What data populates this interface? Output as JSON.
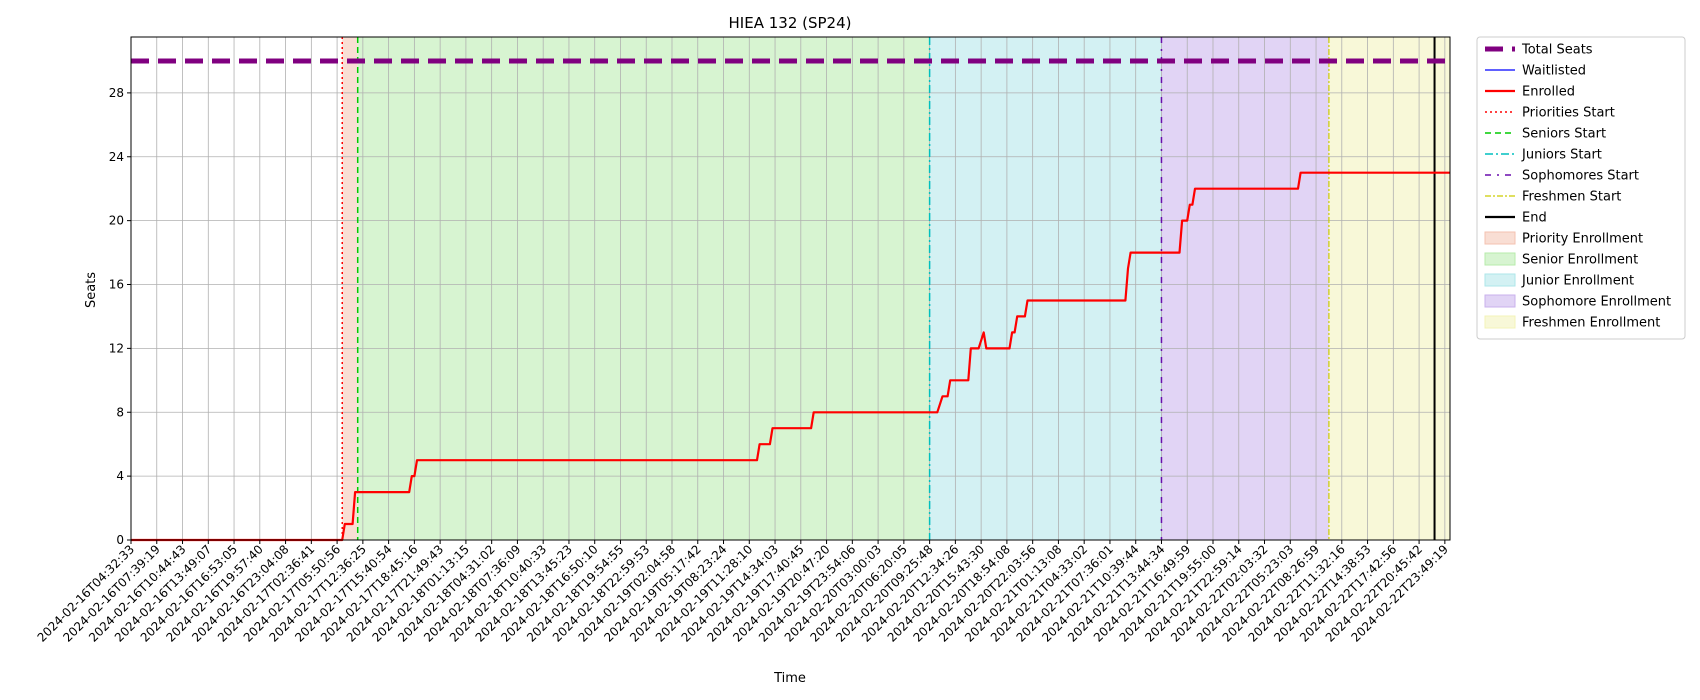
{
  "chart_data": {
    "type": "line",
    "title": "HIEA 132 (SP24)",
    "xlabel": "Time",
    "ylabel": "Seats",
    "ylim": [
      0,
      31.5
    ],
    "yticks": [
      0,
      4,
      8,
      12,
      16,
      20,
      24,
      28
    ],
    "grid": true,
    "legend_position": "outside-right",
    "x_tick_labels": [
      "2024-02-16T04:32:33",
      "2024-02-16T07:39:19",
      "2024-02-16T10:44:43",
      "2024-02-16T13:49:07",
      "2024-02-16T16:53:05",
      "2024-02-16T19:57:40",
      "2024-02-16T23:04:08",
      "2024-02-17T02:36:41",
      "2024-02-17T05:50:56",
      "2024-02-17T12:36:25",
      "2024-02-17T15:40:54",
      "2024-02-17T18:45:16",
      "2024-02-17T21:49:43",
      "2024-02-18T01:13:15",
      "2024-02-18T04:31:02",
      "2024-02-18T07:36:09",
      "2024-02-18T10:40:33",
      "2024-02-18T13:45:23",
      "2024-02-18T16:50:10",
      "2024-02-18T19:54:55",
      "2024-02-18T22:59:53",
      "2024-02-19T02:04:58",
      "2024-02-19T05:17:42",
      "2024-02-19T08:23:24",
      "2024-02-19T11:28:10",
      "2024-02-19T14:34:03",
      "2024-02-19T17:40:45",
      "2024-02-19T20:47:20",
      "2024-02-19T23:54:06",
      "2024-02-20T03:00:03",
      "2024-02-20T06:20:05",
      "2024-02-20T09:25:48",
      "2024-02-20T12:34:26",
      "2024-02-20T15:43:30",
      "2024-02-20T18:54:08",
      "2024-02-20T22:03:56",
      "2024-02-21T01:13:08",
      "2024-02-21T04:33:02",
      "2024-02-21T07:36:01",
      "2024-02-21T10:39:44",
      "2024-02-21T13:44:34",
      "2024-02-21T16:49:59",
      "2024-02-21T19:55:00",
      "2024-02-21T22:59:14",
      "2024-02-22T02:03:32",
      "2024-02-22T05:23:03",
      "2024-02-22T08:26:59",
      "2024-02-22T11:32:16",
      "2024-02-22T14:38:53",
      "2024-02-22T17:42:56",
      "2024-02-22T20:45:42",
      "2024-02-22T23:49:19"
    ],
    "index_range": [
      0,
      51.2
    ],
    "series": [
      {
        "name": "Total Seats",
        "color": "#800080",
        "style": "dashed-thick",
        "points": [
          [
            0,
            30
          ],
          [
            51.2,
            30
          ]
        ]
      },
      {
        "name": "Waitlisted",
        "color": "#0000ff",
        "style": "solid-thin",
        "points": []
      },
      {
        "name": "Enrolled",
        "color": "#ff0000",
        "style": "solid",
        "points": [
          [
            0,
            0
          ],
          [
            8.2,
            0
          ],
          [
            8.3,
            1
          ],
          [
            8.6,
            1
          ],
          [
            8.7,
            3
          ],
          [
            10.8,
            3
          ],
          [
            10.9,
            4
          ],
          [
            11.0,
            4
          ],
          [
            11.1,
            5
          ],
          [
            24.3,
            5
          ],
          [
            24.4,
            6
          ],
          [
            24.8,
            6
          ],
          [
            24.9,
            7
          ],
          [
            26.4,
            7
          ],
          [
            26.5,
            8
          ],
          [
            31.3,
            8
          ],
          [
            31.5,
            9
          ],
          [
            31.7,
            9
          ],
          [
            31.8,
            10
          ],
          [
            32.5,
            10
          ],
          [
            32.6,
            12
          ],
          [
            32.9,
            12
          ],
          [
            33.1,
            13
          ],
          [
            33.2,
            12
          ],
          [
            34.1,
            12
          ],
          [
            34.2,
            13
          ],
          [
            34.3,
            13
          ],
          [
            34.4,
            14
          ],
          [
            34.7,
            14
          ],
          [
            34.8,
            15
          ],
          [
            38.6,
            15
          ],
          [
            38.7,
            17
          ],
          [
            38.8,
            18
          ],
          [
            40.7,
            18
          ],
          [
            40.8,
            20
          ],
          [
            41.0,
            20
          ],
          [
            41.1,
            21
          ],
          [
            41.2,
            21
          ],
          [
            41.3,
            22
          ],
          [
            45.3,
            22
          ],
          [
            45.4,
            23
          ],
          [
            51.2,
            23
          ]
        ]
      }
    ],
    "event_lines": [
      {
        "name": "Priorities Start",
        "color": "#ff0000",
        "style": "dotted",
        "x": 8.2
      },
      {
        "name": "Seniors Start",
        "color": "#00cc00",
        "style": "dashed",
        "x": 8.8
      },
      {
        "name": "Juniors Start",
        "color": "#00bfbf",
        "style": "dashdot",
        "x": 31.0
      },
      {
        "name": "Sophomores Start",
        "color": "#6a0dad",
        "style": "loose-dashdot",
        "x": 40.0
      },
      {
        "name": "Freshmen Start",
        "color": "#cccc00",
        "style": "dashdot-thin",
        "x": 46.5
      },
      {
        "name": "End",
        "color": "#000000",
        "style": "solid",
        "x": 50.6
      }
    ],
    "bands": [
      {
        "name": "Priority Enrollment",
        "color": "#f4c2b0",
        "from": 8.2,
        "to": 8.8
      },
      {
        "name": "Senior Enrollment",
        "color": "#b7ebab",
        "from": 8.8,
        "to": 31.0
      },
      {
        "name": "Junior Enrollment",
        "color": "#aee6ea",
        "from": 31.0,
        "to": 40.0
      },
      {
        "name": "Sophomore Enrollment",
        "color": "#c9b1ec",
        "from": 40.0,
        "to": 46.5
      },
      {
        "name": "Freshmen Enrollment",
        "color": "#f3f3b8",
        "from": 46.5,
        "to": 51.2
      }
    ]
  }
}
